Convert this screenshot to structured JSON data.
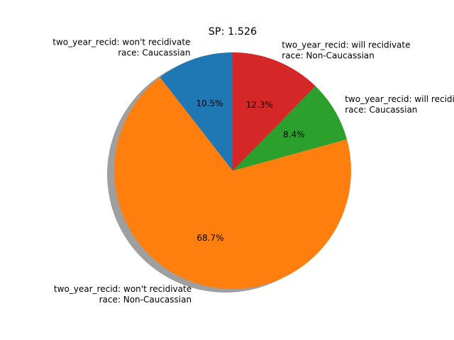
{
  "chart_data": {
    "type": "pie",
    "title": "SP: 1.526",
    "slices": [
      {
        "name": "slice-wont-caucassian",
        "label_lines": [
          "two_year_recid: won't recidivate",
          "race: Caucassian"
        ],
        "value": 10.5,
        "pct_label": "10.5%",
        "color": "#1f77b4",
        "label_anchor": "end"
      },
      {
        "name": "slice-wont-noncaucassian",
        "label_lines": [
          "two_year_recid: won't recidivate",
          "race: Non-Caucassian"
        ],
        "value": 68.7,
        "pct_label": "68.7%",
        "color": "#ff7f0e",
        "label_anchor": "end"
      },
      {
        "name": "slice-will-caucassian",
        "label_lines": [
          "two_year_recid: will recidivate",
          "race: Caucassian"
        ],
        "value": 8.4,
        "pct_label": "8.4%",
        "color": "#2ca02c",
        "label_anchor": "start"
      },
      {
        "name": "slice-will-noncaucassian",
        "label_lines": [
          "two_year_recid: will recidivate",
          "race: Non-Caucassian"
        ],
        "value": 12.3,
        "pct_label": "12.3%",
        "color": "#d62728",
        "label_anchor": "start"
      }
    ],
    "start_angle_deg": 90,
    "direction": "counterclockwise",
    "shadow": true
  }
}
